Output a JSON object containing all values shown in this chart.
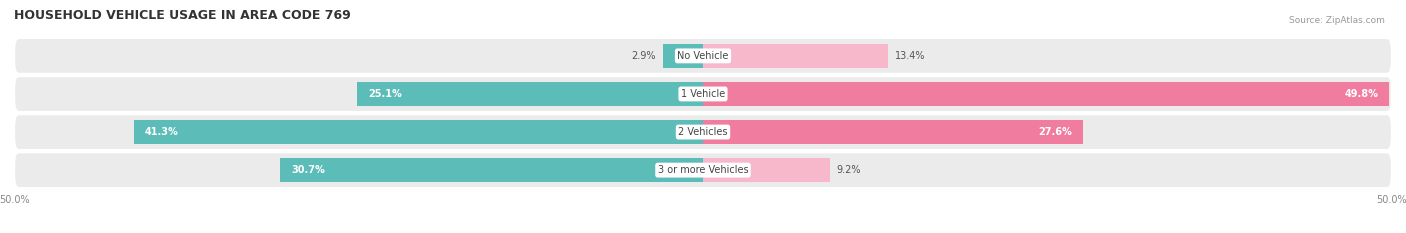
{
  "title": "HOUSEHOLD VEHICLE USAGE IN AREA CODE 769",
  "source": "Source: ZipAtlas.com",
  "categories": [
    "No Vehicle",
    "1 Vehicle",
    "2 Vehicles",
    "3 or more Vehicles"
  ],
  "owner_values": [
    2.9,
    25.1,
    41.3,
    30.7
  ],
  "renter_values": [
    13.4,
    49.8,
    27.6,
    9.2
  ],
  "owner_color": "#5bbcb8",
  "renter_color": "#f07ca0",
  "renter_color_light": "#f7b8cc",
  "xlim": [
    -50,
    50
  ],
  "bar_height": 0.62,
  "row_bg_color": "#ebebeb",
  "title_fontsize": 9,
  "label_fontsize": 7,
  "tick_fontsize": 7,
  "source_fontsize": 6.5,
  "inside_label_threshold_owner": 10,
  "inside_label_threshold_renter": 20
}
